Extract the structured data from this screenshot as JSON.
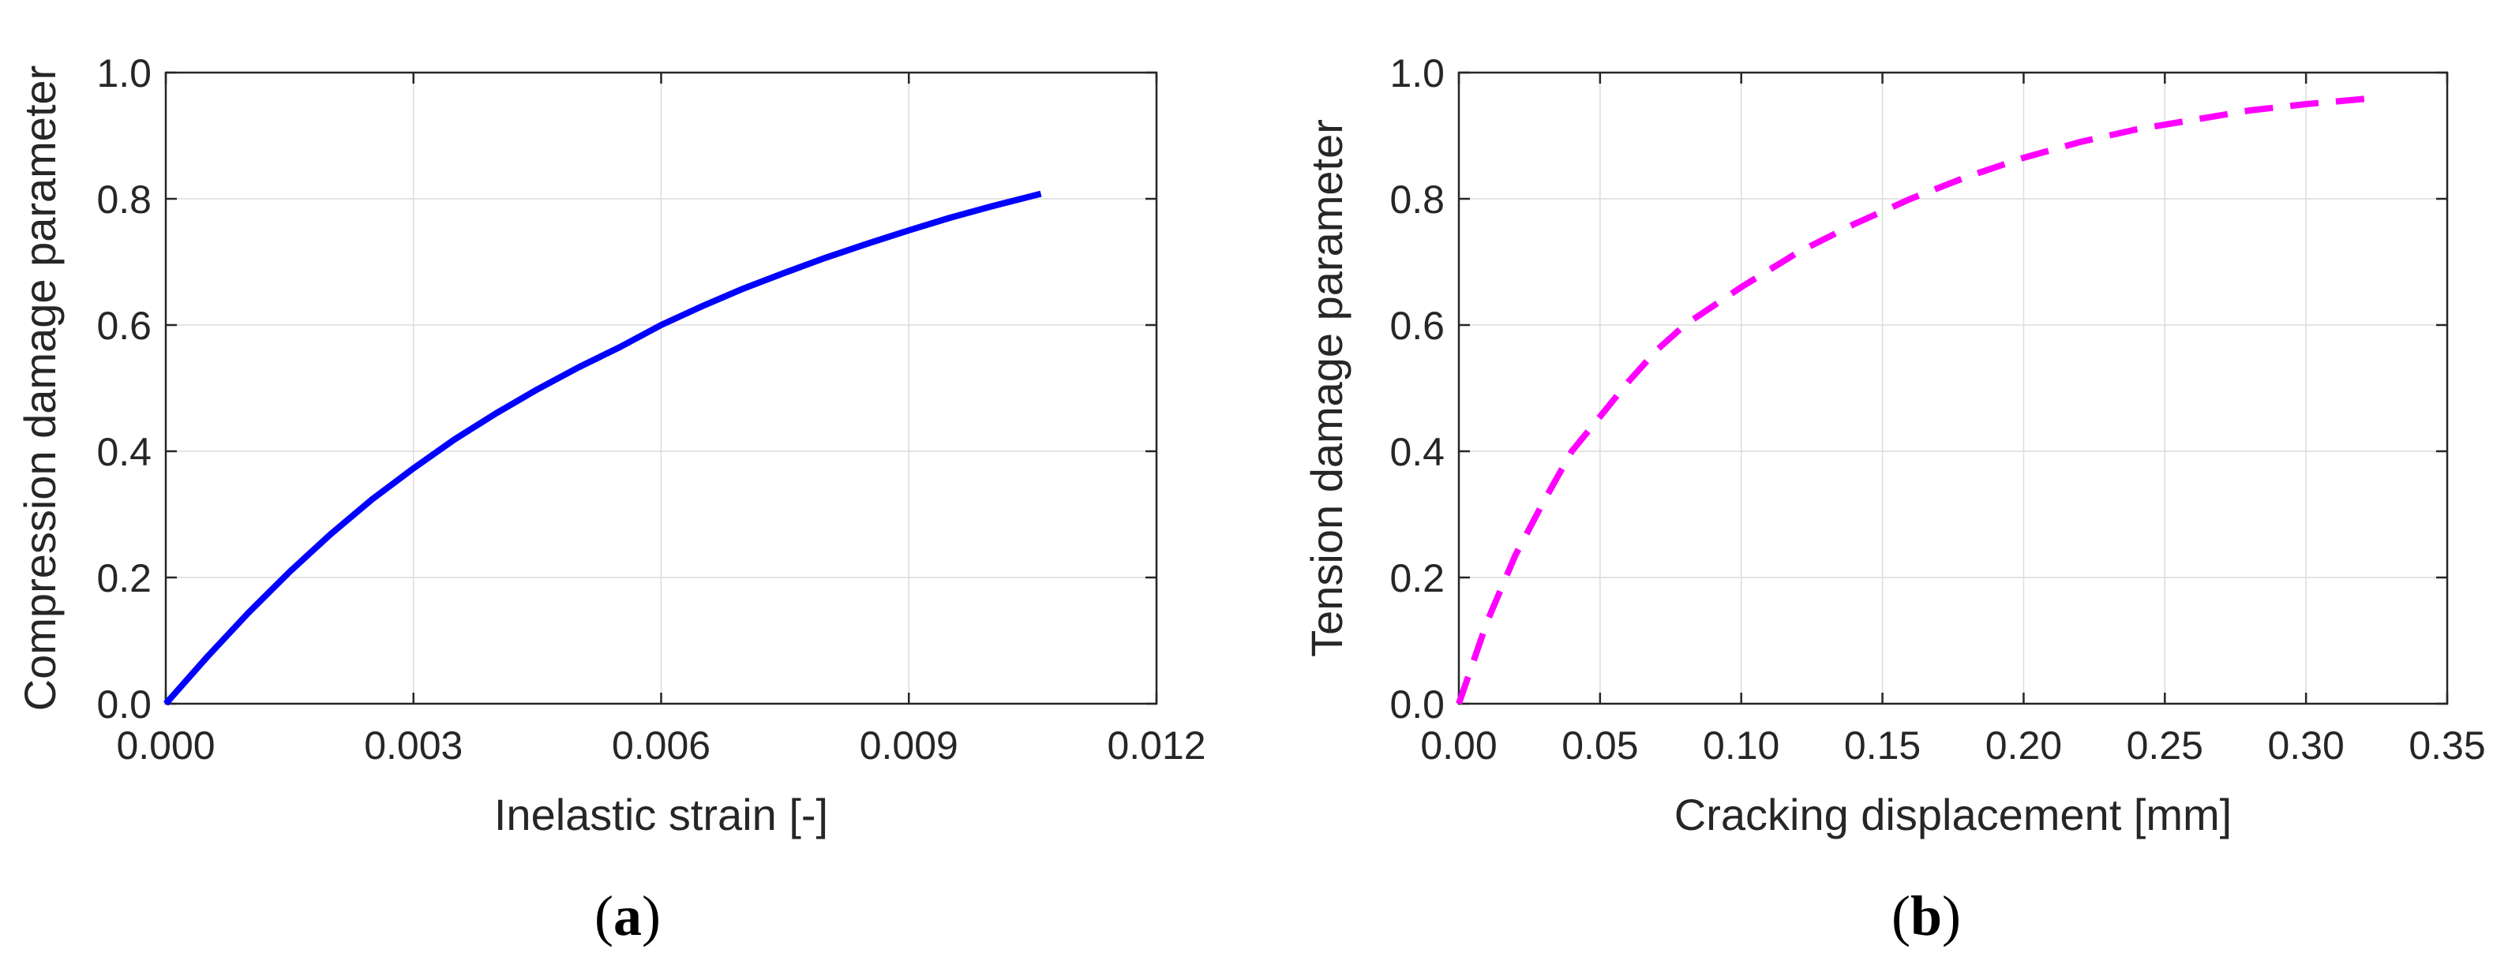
{
  "colors": {
    "series_a": "#0000ff",
    "series_b": "#ff00ff",
    "axis": "#262626",
    "grid": "#dcdcdc"
  },
  "chart_data": [
    {
      "type": "line",
      "panel_label": "a",
      "xlabel": "Inelastic strain [-]",
      "ylabel": "Compression damage parameter",
      "xlim": [
        0,
        0.012
      ],
      "ylim": [
        0,
        1.0
      ],
      "xticks": [
        "0.000",
        "0.003",
        "0.006",
        "0.009",
        "0.012"
      ],
      "xtick_values": [
        0,
        0.003,
        0.006,
        0.009,
        0.012
      ],
      "yticks": [
        "0.0",
        "0.2",
        "0.4",
        "0.6",
        "0.8",
        "1.0"
      ],
      "ytick_values": [
        0,
        0.2,
        0.4,
        0.6,
        0.8,
        1.0
      ],
      "grid": true,
      "series": [
        {
          "style": "solid",
          "color": "#0000ff",
          "x": [
            0,
            0.0005,
            0.001,
            0.0015,
            0.002,
            0.0025,
            0.003,
            0.0035,
            0.004,
            0.0045,
            0.005,
            0.0055,
            0.006,
            0.0065,
            0.007,
            0.0075,
            0.008,
            0.0085,
            0.009,
            0.0095,
            0.01,
            0.0106
          ],
          "y": [
            0,
            0.074,
            0.144,
            0.209,
            0.269,
            0.324,
            0.373,
            0.419,
            0.46,
            0.498,
            0.533,
            0.565,
            0.6,
            0.63,
            0.658,
            0.683,
            0.707,
            0.729,
            0.75,
            0.77,
            0.788,
            0.808
          ]
        }
      ]
    },
    {
      "type": "line",
      "panel_label": "b",
      "xlabel": "Cracking displacement [mm]",
      "ylabel": "Tension damage parameter",
      "xlim": [
        0,
        0.35
      ],
      "ylim": [
        0,
        1.0
      ],
      "xticks": [
        "0.00",
        "0.05",
        "0.10",
        "0.15",
        "0.20",
        "0.25",
        "0.30",
        "0.35"
      ],
      "xtick_values": [
        0,
        0.05,
        0.1,
        0.15,
        0.2,
        0.25,
        0.3,
        0.35
      ],
      "yticks": [
        "0.0",
        "0.2",
        "0.4",
        "0.6",
        "0.8",
        "1.0"
      ],
      "ytick_values": [
        0,
        0.2,
        0.4,
        0.6,
        0.8,
        1.0
      ],
      "grid": true,
      "series": [
        {
          "style": "dashed",
          "color": "#ff00ff",
          "x": [
            0,
            0.01,
            0.02,
            0.03,
            0.04,
            0.05,
            0.06,
            0.07,
            0.08,
            0.1,
            0.12,
            0.14,
            0.16,
            0.18,
            0.2,
            0.22,
            0.24,
            0.26,
            0.28,
            0.3,
            0.325
          ],
          "y": [
            0,
            0.13,
            0.235,
            0.32,
            0.4,
            0.455,
            0.51,
            0.56,
            0.6,
            0.66,
            0.715,
            0.76,
            0.8,
            0.835,
            0.865,
            0.89,
            0.91,
            0.925,
            0.94,
            0.95,
            0.96
          ]
        }
      ]
    }
  ]
}
